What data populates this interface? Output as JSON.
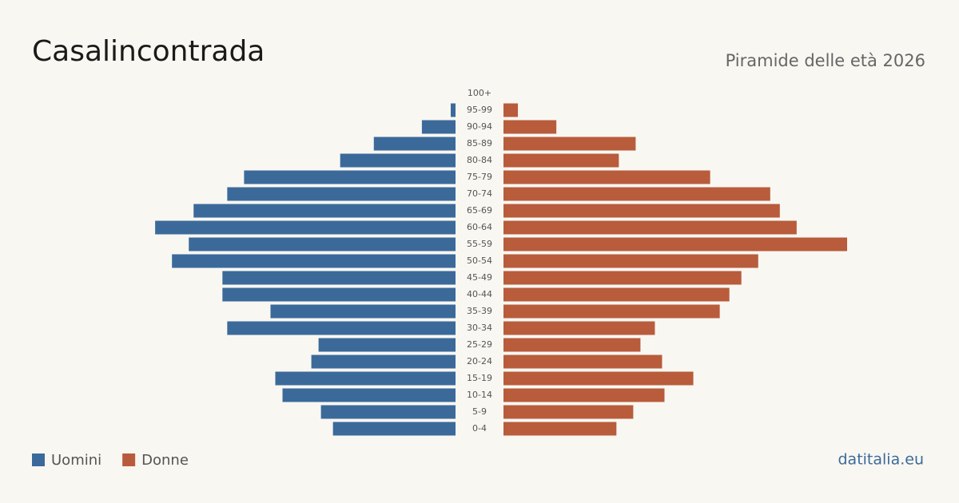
{
  "chart_data": {
    "type": "pyramid",
    "title": "Casalincontrada",
    "subtitle": "Piramide delle età 2026",
    "source": "datitalia.eu",
    "categories": [
      "100+",
      "95-99",
      "90-94",
      "85-89",
      "80-84",
      "75-79",
      "70-74",
      "65-69",
      "60-64",
      "55-59",
      "50-54",
      "45-49",
      "40-44",
      "35-39",
      "30-34",
      "25-29",
      "20-24",
      "15-19",
      "10-14",
      "5-9",
      "0-4"
    ],
    "series": [
      {
        "name": "Uomini",
        "color": "#3b6a9a",
        "values": [
          0,
          2,
          14,
          34,
          48,
          88,
          95,
          109,
          125,
          111,
          118,
          97,
          97,
          77,
          95,
          57,
          60,
          75,
          72,
          56,
          51
        ]
      },
      {
        "name": "Donne",
        "color": "#b85c3c",
        "values": [
          0,
          6,
          22,
          55,
          48,
          86,
          111,
          115,
          122,
          143,
          106,
          99,
          94,
          90,
          63,
          57,
          66,
          79,
          67,
          54,
          47
        ]
      }
    ]
  }
}
